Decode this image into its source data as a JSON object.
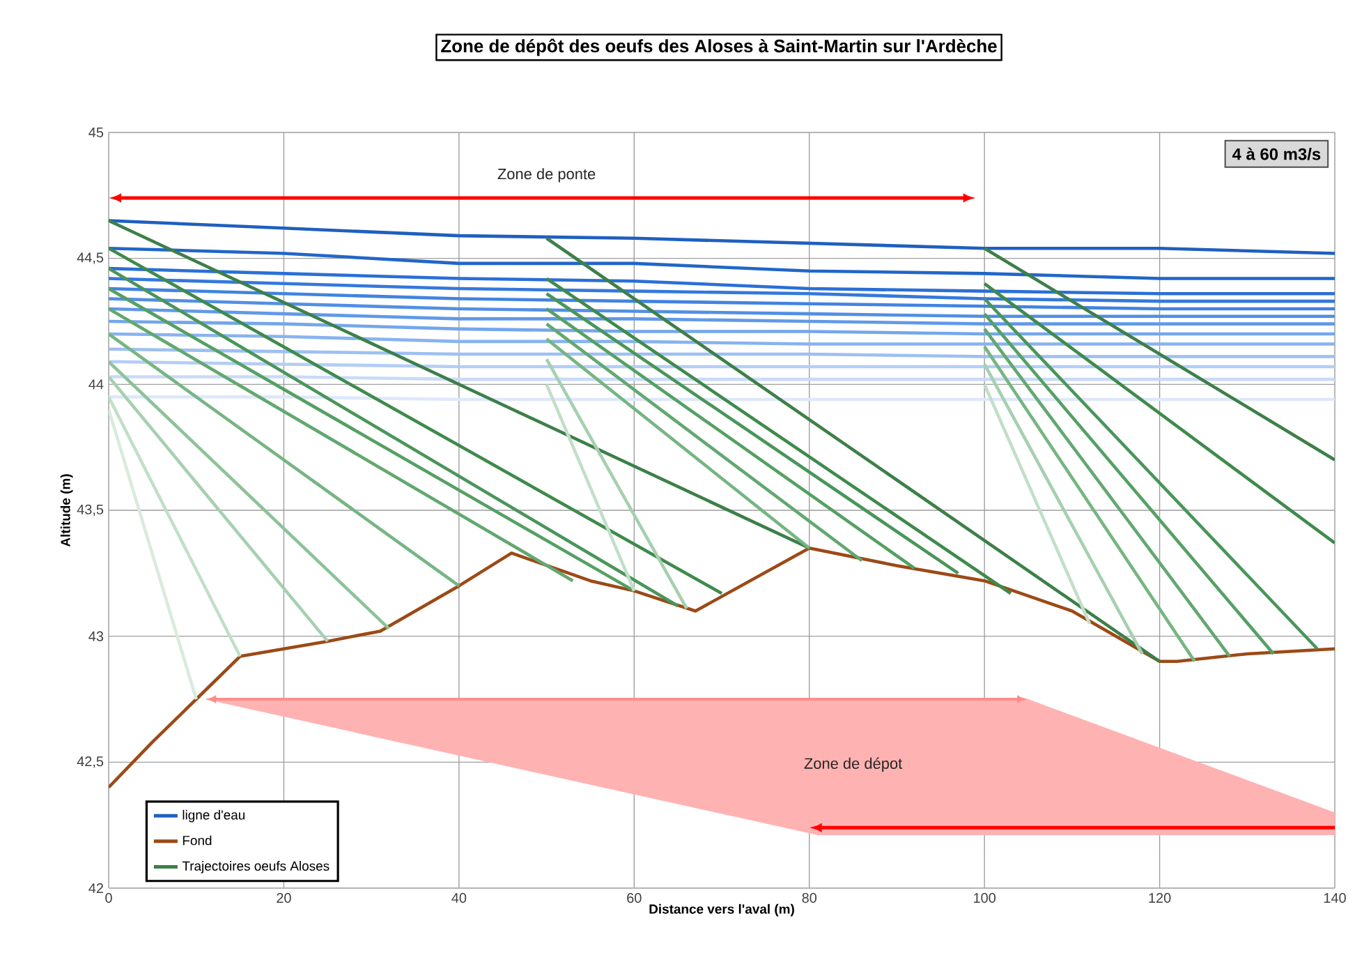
{
  "chart_data": {
    "type": "line",
    "title": "Zone de dépôt des oeufs des Aloses à Saint-Martin sur l'Ardèche",
    "xlabel": "Distance vers l'aval (m)",
    "ylabel": "Altitude (m)",
    "xlim": [
      0,
      140
    ],
    "xticks": [
      0,
      20,
      40,
      60,
      80,
      100,
      120,
      140
    ],
    "ylim": [
      42,
      45
    ],
    "yticks": [
      42,
      {
        "value": 42.5,
        "label": "42,5"
      },
      43,
      {
        "value": 43.5,
        "label": "43,5"
      },
      44,
      {
        "value": 44.5,
        "label": "44,5"
      },
      45
    ],
    "grid": true,
    "legend": "bottom left",
    "annotations": [
      "Zone de ponte",
      "4 à 60 m3/s",
      "Zone de dépot"
    ],
    "series": [
      {
        "name": "ligne d'eau",
        "color": "#1f5fbf",
        "x": [
          0,
          20,
          40,
          60,
          80,
          100,
          120,
          140
        ],
        "values": [
          44.65,
          44.62,
          44.59,
          44.58,
          44.56,
          44.54,
          44.54,
          44.52
        ]
      },
      {
        "color": "#2166c8",
        "x": [
          0,
          20,
          40,
          60,
          80,
          100,
          120,
          140
        ],
        "values": [
          44.54,
          44.52,
          44.48,
          44.48,
          44.45,
          44.44,
          44.42,
          44.42
        ]
      },
      {
        "color": "#2a6fd6",
        "x": [
          0,
          20,
          40,
          60,
          80,
          100,
          120,
          140
        ],
        "values": [
          44.46,
          44.44,
          44.42,
          44.41,
          44.38,
          44.37,
          44.36,
          44.36
        ]
      },
      {
        "color": "#3478dc",
        "x": [
          0,
          20,
          40,
          60,
          80,
          100,
          120,
          140
        ],
        "values": [
          44.42,
          44.4,
          44.38,
          44.37,
          44.36,
          44.34,
          44.33,
          44.33
        ]
      },
      {
        "color": "#4283e0",
        "x": [
          0,
          20,
          40,
          60,
          80,
          100,
          120,
          140
        ],
        "values": [
          44.38,
          44.36,
          44.34,
          44.33,
          44.32,
          44.31,
          44.3,
          44.3
        ]
      },
      {
        "color": "#528fe4",
        "x": [
          0,
          20,
          40,
          60,
          80,
          100,
          120,
          140
        ],
        "values": [
          44.34,
          44.32,
          44.3,
          44.29,
          44.28,
          44.27,
          44.27,
          44.27
        ]
      },
      {
        "color": "#6199e8",
        "x": [
          0,
          20,
          40,
          60,
          80,
          100,
          120,
          140
        ],
        "values": [
          44.3,
          44.28,
          44.26,
          44.26,
          44.25,
          44.24,
          44.24,
          44.24
        ]
      },
      {
        "color": "#74a6ec",
        "x": [
          0,
          20,
          40,
          60,
          80,
          100,
          120,
          140
        ],
        "values": [
          44.25,
          44.24,
          44.22,
          44.21,
          44.21,
          44.2,
          44.2,
          44.2
        ]
      },
      {
        "color": "#88b3ef",
        "x": [
          0,
          20,
          40,
          60,
          80,
          100,
          120,
          140
        ],
        "values": [
          44.2,
          44.19,
          44.17,
          44.17,
          44.16,
          44.16,
          44.16,
          44.16
        ]
      },
      {
        "color": "#9dc0f2",
        "x": [
          0,
          20,
          40,
          60,
          80,
          100,
          120,
          140
        ],
        "values": [
          44.14,
          44.13,
          44.12,
          44.12,
          44.12,
          44.11,
          44.11,
          44.11
        ]
      },
      {
        "color": "#b3cef5",
        "x": [
          0,
          20,
          40,
          60,
          80,
          100,
          120,
          140
        ],
        "values": [
          44.09,
          44.08,
          44.07,
          44.07,
          44.07,
          44.07,
          44.07,
          44.07
        ]
      },
      {
        "color": "#c8dbf8",
        "x": [
          0,
          20,
          40,
          60,
          80,
          100,
          120,
          140
        ],
        "values": [
          44.03,
          44.03,
          44.02,
          44.02,
          44.02,
          44.02,
          44.02,
          44.02
        ]
      },
      {
        "color": "#dde8fb",
        "x": [
          0,
          20,
          40,
          60,
          80,
          100,
          120,
          140
        ],
        "values": [
          43.95,
          43.95,
          43.94,
          43.94,
          43.94,
          43.94,
          43.94,
          43.94
        ]
      },
      {
        "name": "Fond",
        "color": "#9c4a16",
        "x": [
          0,
          5,
          10,
          15,
          20,
          25,
          31,
          40,
          46,
          55,
          60,
          67,
          80,
          90,
          100,
          110,
          120,
          122,
          130,
          140
        ],
        "values": [
          42.4,
          42.58,
          42.75,
          42.92,
          42.95,
          42.98,
          43.02,
          43.2,
          43.33,
          43.22,
          43.18,
          43.1,
          43.35,
          43.28,
          43.22,
          43.1,
          42.9,
          42.9,
          42.93,
          42.95
        ]
      },
      {
        "name": "Trajectoires oeufs Aloses",
        "color": "#3d7f49",
        "x": [
          0,
          80
        ],
        "values": [
          44.65,
          43.35
        ]
      },
      {
        "color": "#3f8a4c",
        "x": [
          0,
          70
        ],
        "values": [
          44.54,
          43.17
        ]
      },
      {
        "color": "#4a955a",
        "x": [
          0,
          65
        ],
        "values": [
          44.46,
          43.12
        ]
      },
      {
        "color": "#55a064",
        "x": [
          0,
          60
        ],
        "values": [
          44.38,
          43.18
        ]
      },
      {
        "color": "#62a870",
        "x": [
          0,
          53
        ],
        "values": [
          44.3,
          43.22
        ]
      },
      {
        "color": "#76b583",
        "x": [
          0,
          40
        ],
        "values": [
          44.2,
          43.2
        ]
      },
      {
        "color": "#8cc298",
        "x": [
          0,
          32
        ],
        "values": [
          44.09,
          43.03
        ]
      },
      {
        "color": "#a6d0b0",
        "x": [
          0,
          25
        ],
        "values": [
          44.03,
          42.98
        ]
      },
      {
        "color": "#c2dfc8",
        "x": [
          0,
          15
        ],
        "values": [
          43.95,
          42.92
        ]
      },
      {
        "color": "#d9ebdd",
        "x": [
          0,
          10
        ],
        "values": [
          43.9,
          42.75
        ]
      },
      {
        "color": "#3d7f49",
        "x": [
          50,
          120
        ],
        "values": [
          44.58,
          42.9
        ]
      },
      {
        "color": "#3f8a4c",
        "x": [
          50,
          103
        ],
        "values": [
          44.42,
          43.17
        ]
      },
      {
        "color": "#4a955a",
        "x": [
          50,
          97
        ],
        "values": [
          44.36,
          43.25
        ]
      },
      {
        "color": "#55a064",
        "x": [
          50,
          92
        ],
        "values": [
          44.3,
          43.27
        ]
      },
      {
        "color": "#62a870",
        "x": [
          50,
          86
        ],
        "values": [
          44.24,
          43.3
        ]
      },
      {
        "color": "#76b583",
        "x": [
          50,
          80
        ],
        "values": [
          44.18,
          43.35
        ]
      },
      {
        "color": "#a6d0b0",
        "x": [
          50,
          66
        ],
        "values": [
          44.1,
          43.11
        ]
      },
      {
        "color": "#c2dfc8",
        "x": [
          50,
          60
        ],
        "values": [
          44.0,
          43.18
        ]
      },
      {
        "color": "#3d7f49",
        "x": [
          100,
          140
        ],
        "values": [
          44.54,
          43.7
        ]
      },
      {
        "color": "#3f8a4c",
        "x": [
          100,
          140
        ],
        "values": [
          44.4,
          43.37
        ]
      },
      {
        "color": "#4a955a",
        "x": [
          100,
          138
        ],
        "values": [
          44.34,
          42.95
        ]
      },
      {
        "color": "#55a064",
        "x": [
          100,
          133
        ],
        "values": [
          44.28,
          42.93
        ]
      },
      {
        "color": "#62a870",
        "x": [
          100,
          128
        ],
        "values": [
          44.22,
          42.92
        ]
      },
      {
        "color": "#76b583",
        "x": [
          100,
          124
        ],
        "values": [
          44.15,
          42.9
        ]
      },
      {
        "color": "#a6d0b0",
        "x": [
          100,
          118
        ],
        "values": [
          44.08,
          42.93
        ]
      },
      {
        "color": "#c2dfc8",
        "x": [
          100,
          112
        ],
        "values": [
          44.0,
          43.05
        ]
      }
    ]
  }
}
